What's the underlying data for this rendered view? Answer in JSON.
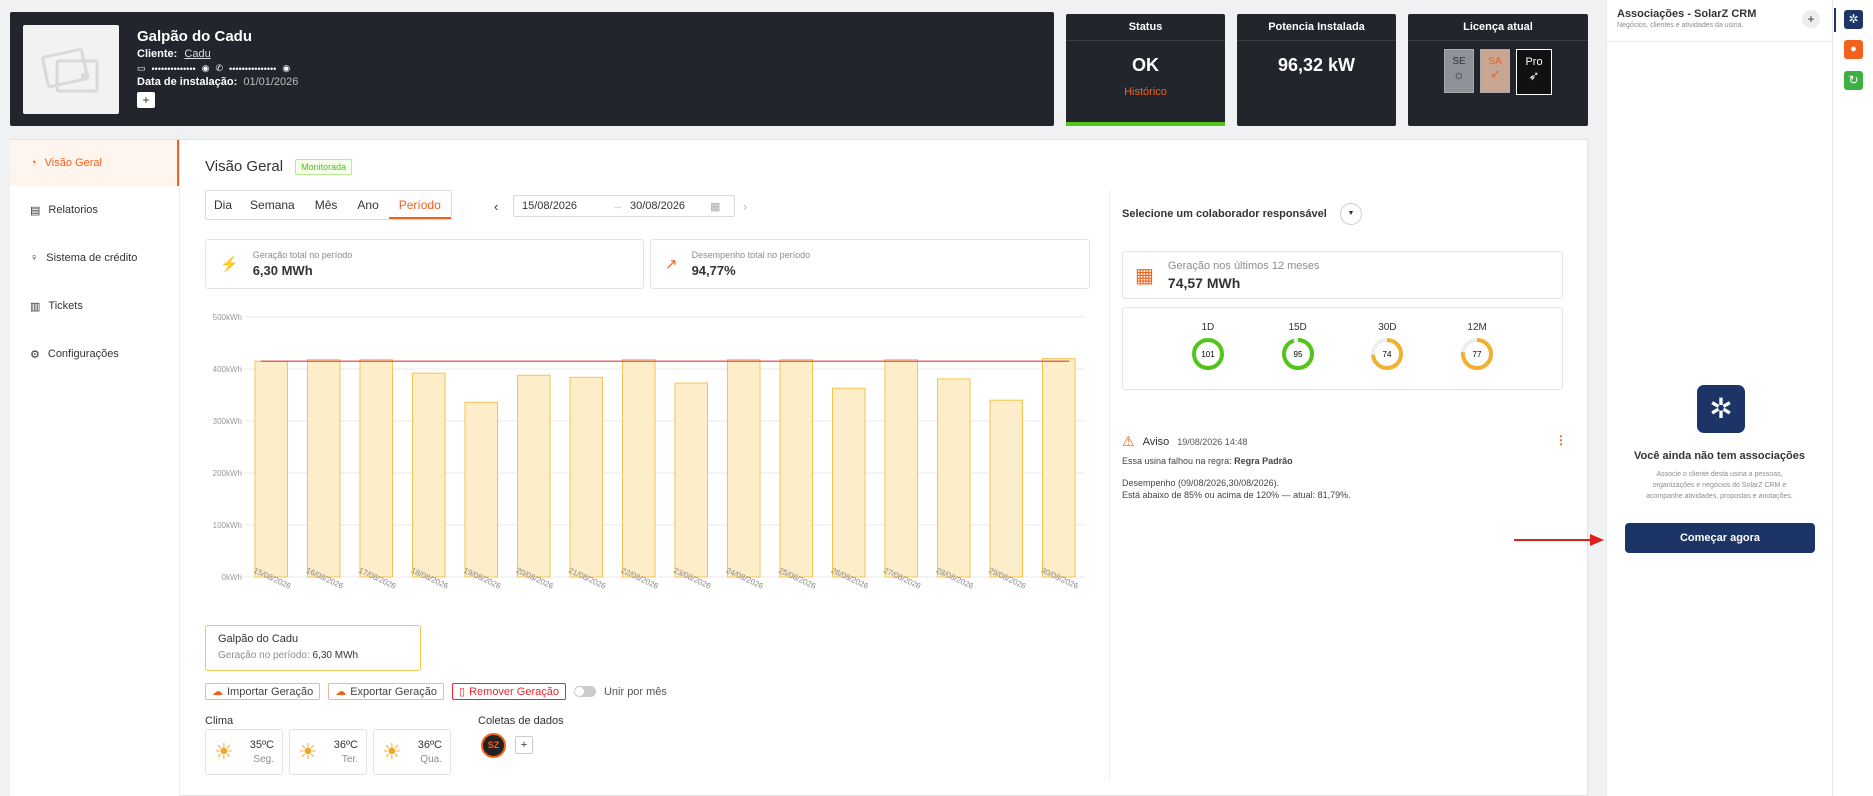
{
  "plant": {
    "name": "Galpão do Cadu",
    "client_label": "Cliente:",
    "client_name": "Cadu",
    "masked_doc": "••••••••••••••",
    "masked_phone": "•••••••••••••••",
    "install_label": "Data de instalação:",
    "install_date": "01/01/2026",
    "add_label": "+"
  },
  "status_card": {
    "title": "Status",
    "value": "OK",
    "link": "Histórico"
  },
  "power_card": {
    "title": "Potencia Instalada",
    "value": "96,32 kW"
  },
  "license_card": {
    "title": "Licença atual",
    "badges": [
      "SE",
      "SA",
      "Pro"
    ]
  },
  "sidebar": {
    "items": [
      {
        "label": "Visão Geral",
        "icon": "dashboard-icon"
      },
      {
        "label": "Relatorios",
        "icon": "report-icon"
      },
      {
        "label": "Sistema de crédito",
        "icon": "lightbulb-icon"
      },
      {
        "label": "Tickets",
        "icon": "ticket-icon"
      },
      {
        "label": "Configurações",
        "icon": "gear-icon"
      }
    ]
  },
  "main": {
    "title": "Visão Geral",
    "badge": "Monitorada",
    "tabs": [
      "Dia",
      "Semana",
      "Mês",
      "Ano",
      "Período"
    ],
    "date_start": "15/08/2026",
    "date_end": "30/08/2026",
    "arrow": "→",
    "kpi1": {
      "label": "Geração total no período",
      "value": "6,30 MWh"
    },
    "kpi2": {
      "label": "Desempenho total no período",
      "value": "94,77%"
    },
    "legend": {
      "name": "Galpão do Cadu",
      "sub_label": "Geração no período:",
      "sub_value": "6,30 MWh"
    },
    "actions": {
      "import": "Importar Geração",
      "export": "Exportar Geração",
      "remove": "Remover Geração",
      "toggle": "Unir por mês"
    },
    "climate_title": "Clima",
    "climate": [
      {
        "temp": "35ºC",
        "day": "Seg."
      },
      {
        "temp": "36ºC",
        "day": "Ter."
      },
      {
        "temp": "36ºC",
        "day": "Qua."
      }
    ],
    "collect_title": "Coletas de dados",
    "collect_badge": "SZ",
    "collect_add": "+"
  },
  "chart_data": {
    "type": "bar",
    "categories": [
      "15/08/2026",
      "16/08/2026",
      "17/08/2026",
      "18/08/2026",
      "19/08/2026",
      "20/08/2026",
      "21/08/2026",
      "22/08/2026",
      "23/08/2026",
      "24/08/2026",
      "25/08/2026",
      "26/08/2026",
      "27/08/2026",
      "28/08/2026",
      "29/08/2026",
      "30/08/2026"
    ],
    "values": [
      415,
      418,
      418,
      392,
      336,
      388,
      384,
      418,
      373,
      418,
      418,
      363,
      418,
      381,
      340,
      420
    ],
    "reference_line": 415,
    "ylim": [
      0,
      500
    ],
    "yticks": [
      "0kWh",
      "100kWh",
      "200kWh",
      "300kWh",
      "400kWh",
      "500kWh"
    ],
    "colors": {
      "bar_fill": "#fdedc9",
      "bar_stroke": "#f5c451",
      "line": "#e53935"
    },
    "grid": true
  },
  "right": {
    "select_label": "Selecione um colaborador responsável",
    "gen12_label": "Geração nos últimos 12 meses",
    "gen12_value": "74,57 MWh",
    "rings": [
      {
        "label": "1D",
        "value": "101",
        "pct": 1.0,
        "color": "#52c41a"
      },
      {
        "label": "15D",
        "value": "95",
        "pct": 0.95,
        "color": "#52c41a"
      },
      {
        "label": "30D",
        "value": "74",
        "pct": 0.74,
        "color": "#f0b131"
      },
      {
        "label": "12M",
        "value": "77",
        "pct": 0.77,
        "color": "#f0b131"
      }
    ],
    "alert": {
      "title": "Aviso",
      "time": "19/08/2026 14:48",
      "line1": "Essa usina falhou na regra:",
      "rule": "Regra Padrão",
      "line2": "Desempenho (09/08/2026,30/08/2026).",
      "line3": "Está abaixo de 85% ou acima de 120% — atual: 81,79%."
    }
  },
  "panel": {
    "title": "Associações - SolarZ CRM",
    "subtitle": "Negócios, clientes e atividades da usina.",
    "empty_title": "Você ainda não tem associações",
    "empty_desc_1": "Associe o cliente desta usina a pessoas,",
    "empty_desc_2": "organizações e negócios do SolarZ CRM e",
    "empty_desc_3": "acompanhe atividades, propostas e anotações.",
    "cta": "Começar agora"
  }
}
